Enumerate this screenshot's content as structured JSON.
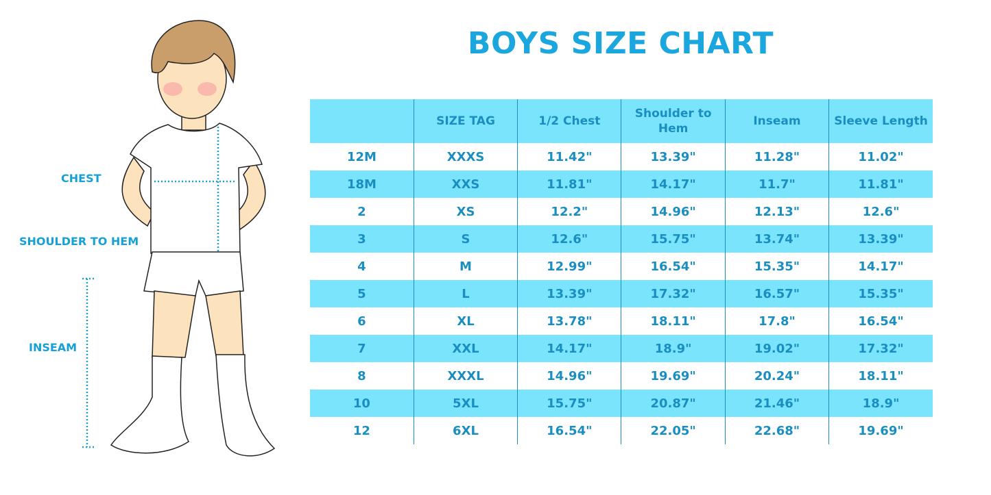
{
  "title": "BOYS SIZE CHART",
  "illustration": {
    "labels": {
      "chest": "CHEST",
      "shoulder_to_hem": "SHOULDER TO HEM",
      "inseam": "INSEAM"
    }
  },
  "colors": {
    "accent": "#1ba6de",
    "stripe": "#7ae4fc",
    "text": "#1a8ec0"
  },
  "table": {
    "headers": [
      "",
      "SIZE TAG",
      "1/2 Chest",
      "Shoulder to Hem",
      "Inseam",
      "Sleeve Length"
    ],
    "rows": [
      [
        "12M",
        "XXXS",
        "11.42\"",
        "13.39\"",
        "11.28\"",
        "11.02\""
      ],
      [
        "18M",
        "XXS",
        "11.81\"",
        "14.17\"",
        "11.7\"",
        "11.81\""
      ],
      [
        "2",
        "XS",
        "12.2\"",
        "14.96\"",
        "12.13\"",
        "12.6\""
      ],
      [
        "3",
        "S",
        "12.6\"",
        "15.75\"",
        "13.74\"",
        "13.39\""
      ],
      [
        "4",
        "M",
        "12.99\"",
        "16.54\"",
        "15.35\"",
        "14.17\""
      ],
      [
        "5",
        "L",
        "13.39\"",
        "17.32\"",
        "16.57\"",
        "15.35\""
      ],
      [
        "6",
        "XL",
        "13.78\"",
        "18.11\"",
        "17.8\"",
        "16.54\""
      ],
      [
        "7",
        "XXL",
        "14.17\"",
        "18.9\"",
        "19.02\"",
        "17.32\""
      ],
      [
        "8",
        "XXXL",
        "14.96\"",
        "19.69\"",
        "20.24\"",
        "18.11\""
      ],
      [
        "10",
        "5XL",
        "15.75\"",
        "20.87\"",
        "21.46\"",
        "18.9\""
      ],
      [
        "12",
        "6XL",
        "16.54\"",
        "22.05\"",
        "22.68\"",
        "19.69\""
      ]
    ]
  }
}
